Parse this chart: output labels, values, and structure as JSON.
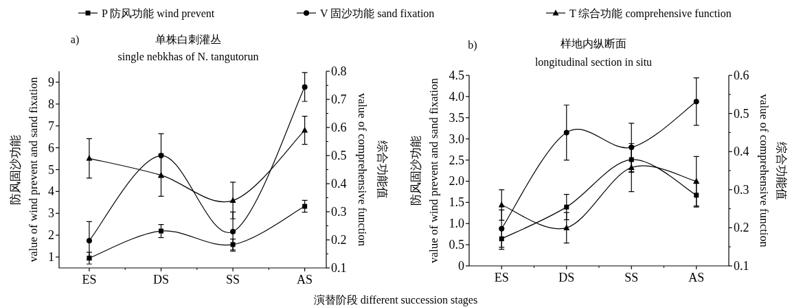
{
  "chart_data": [
    {
      "type": "line",
      "title": "单株白刺灌丛",
      "subtitle": "single nebkhas of N. tangutorun",
      "annotations": [
        "a)"
      ],
      "xlabel": "演替阶段 different succession stages",
      "ylabel": "防风固沙功能\nvalue of wind prevent and sand fixation",
      "y2label": "value of comprehensive function\n综合功能值",
      "categories": [
        "ES",
        "DS",
        "SS",
        "AS"
      ],
      "ylim": [
        0.5,
        9.5
      ],
      "yticks": [
        1,
        2,
        3,
        4,
        5,
        6,
        7,
        8,
        9
      ],
      "y2lim": [
        0.1,
        0.8
      ],
      "y2ticks": [
        0.1,
        0.2,
        0.3,
        0.4,
        0.5,
        0.6,
        0.7,
        0.8
      ],
      "legend": "top",
      "grid": false,
      "line_style": "solid",
      "series": [
        {
          "name": "P 防风功能 wind prevent",
          "color": "#000000",
          "marker": "square",
          "values": [
            0.95,
            2.19,
            1.57,
            3.32
          ],
          "errors": [
            0.27,
            0.3,
            0.25,
            0.27
          ]
        },
        {
          "name": "V 固沙功能 sand fixation",
          "color": "#000000",
          "marker": "circle",
          "values": [
            1.75,
            5.64,
            2.16,
            8.78
          ],
          "errors": [
            0.87,
            1.0,
            0.9,
            0.66
          ]
        },
        {
          "name": "T 综合功能 comprehensive function",
          "color": "#000000",
          "marker": "triangle",
          "axis": "y2",
          "values": [
            0.49,
            0.43,
            0.34,
            0.59
          ],
          "errors": [
            0.07,
            0.075,
            0.065,
            0.05
          ]
        }
      ]
    },
    {
      "type": "line",
      "title": "样地内纵断面",
      "subtitle": "longitudinal section in situ",
      "annotations": [
        "b)"
      ],
      "ylabel": "防风固沙功能\nvalue of wind prevent and sand fixation",
      "y2label": "value of comprehensive function\n综合功能值",
      "categories": [
        "ES",
        "DS",
        "SS",
        "AS"
      ],
      "ylim": [
        0,
        4.5
      ],
      "yticks": [
        0,
        {
          "value": 0.5,
          "label": "0.5"
        },
        {
          "value": 1,
          "label": "1.0"
        },
        1.5,
        {
          "value": 2,
          "label": "2.0"
        },
        2.5,
        {
          "value": 3,
          "label": "3.0"
        },
        3.5,
        {
          "value": 4,
          "label": "4.0"
        },
        4.5
      ],
      "y2lim": [
        0.1,
        0.6
      ],
      "y2ticks": [
        0.1,
        0.2,
        0.3,
        0.4,
        0.5,
        0.6
      ],
      "legend": false,
      "grid": false,
      "line_style": "solid",
      "series": [
        {
          "color": "#000000",
          "marker": "square",
          "values": [
            0.64,
            1.39,
            2.51,
            1.67
          ],
          "errors": [
            0.25,
            0.3,
            0.3,
            0.28
          ]
        },
        {
          "color": "#000000",
          "marker": "circle",
          "values": [
            0.88,
            3.15,
            2.8,
            3.88
          ],
          "errors": [
            0.44,
            0.65,
            0.57,
            0.56
          ]
        },
        {
          "color": "#000000",
          "marker": "triangle",
          "axis": "y2",
          "values": [
            0.26,
            0.2,
            0.358,
            0.322
          ],
          "errors": [
            0.04,
            0.04,
            0.063,
            0.065
          ]
        }
      ]
    }
  ]
}
